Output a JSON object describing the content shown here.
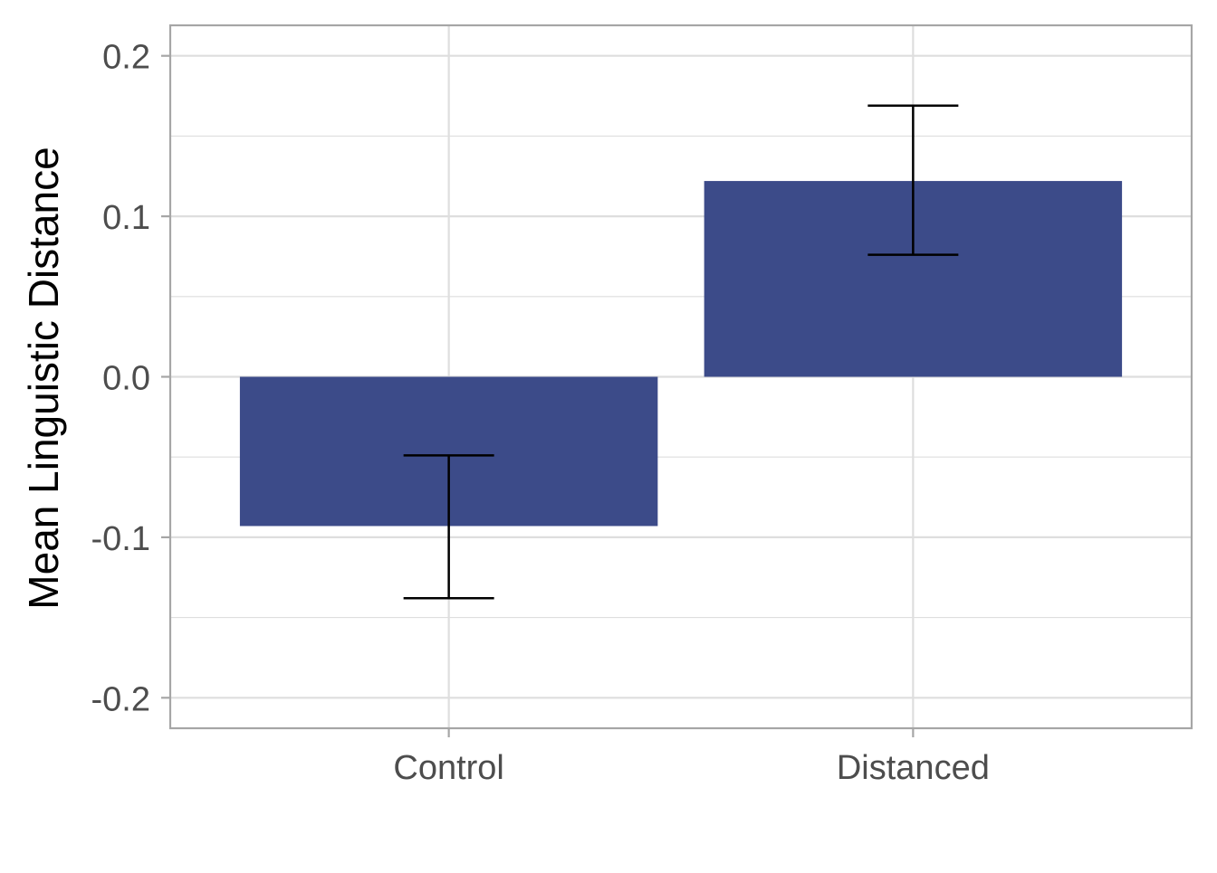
{
  "chart_data": {
    "type": "bar",
    "title": "",
    "xlabel": "",
    "ylabel": "Mean Linguistic Distance",
    "categories": [
      "Control",
      "Distanced"
    ],
    "values": [
      -0.093,
      0.122
    ],
    "error_low": [
      -0.138,
      0.076
    ],
    "error_high": [
      -0.049,
      0.169
    ],
    "ylim": [
      -0.219,
      0.219
    ],
    "yticks": [
      -0.2,
      -0.1,
      0.0,
      0.1,
      0.2
    ],
    "ytick_labels": [
      "-0.2",
      "-0.1",
      "0.0",
      "0.1",
      "0.2"
    ],
    "grid": true,
    "legend": "none",
    "colors": {
      "bar": "#3c4b89",
      "errorbar": "#000000",
      "grid": "#dedede",
      "panel_border": "#a6a6a6",
      "tick_text": "#4d4d4d",
      "axis_title": "#000000"
    }
  }
}
